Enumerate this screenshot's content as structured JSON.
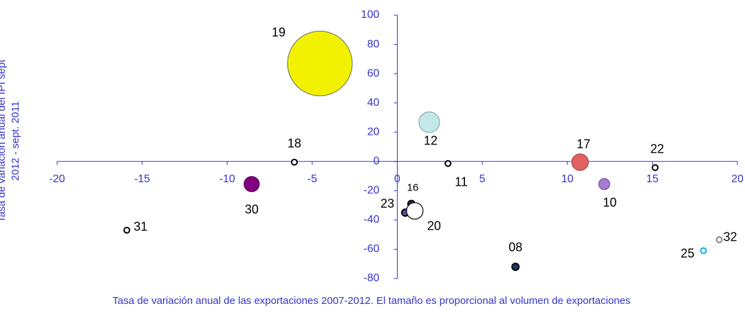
{
  "chart_data": {
    "type": "bubble",
    "x_label": "Tasa de variación anual de las exportaciones 2007-2012. El tamaño es proporcional al volumen de exportaciones",
    "y_label": "Tasa de variación anual del IPI sept 2012 - sept. 2011",
    "labels": [
      "19",
      "18",
      "30",
      "31",
      "12",
      "11",
      "16",
      "23",
      "20",
      "17",
      "10",
      "22",
      "08",
      "25",
      "32"
    ],
    "x": [
      -4.55,
      -6.05,
      -8.56,
      -15.9,
      1.88,
      2.98,
      0.83,
      0.47,
      1.03,
      10.75,
      12.17,
      15.16,
      6.95,
      18.0,
      18.93
    ],
    "values": [
      67,
      -0.5,
      -15.5,
      -47,
      26.8,
      -1.4,
      -29,
      -35,
      -33.8,
      -0.5,
      -15.5,
      -4.2,
      -72,
      -61,
      -53.5
    ],
    "sizes": [
      2209,
      16,
      121,
      16,
      225,
      16,
      25,
      25,
      144,
      144,
      64,
      16,
      25,
      16,
      16
    ],
    "colors": [
      "#f2f200",
      "#ffffff",
      "#800080",
      "#ffffff",
      "#c4e8e8",
      "#ffffff",
      "#1f3a6a",
      "#5050a0",
      "#ffffff",
      "#e06262",
      "#a67cd0",
      "#ffffff",
      "#1a3a6a",
      "#ffffff",
      "#ffffff"
    ],
    "xlim": [
      -20,
      20
    ],
    "xticks": [
      -20,
      -15,
      -10,
      -5,
      0,
      5,
      10,
      15,
      20
    ],
    "ylim": [
      -80,
      100
    ],
    "yticks": [
      -80,
      -60,
      -40,
      -20,
      0,
      20,
      40,
      60,
      80,
      100
    ]
  }
}
